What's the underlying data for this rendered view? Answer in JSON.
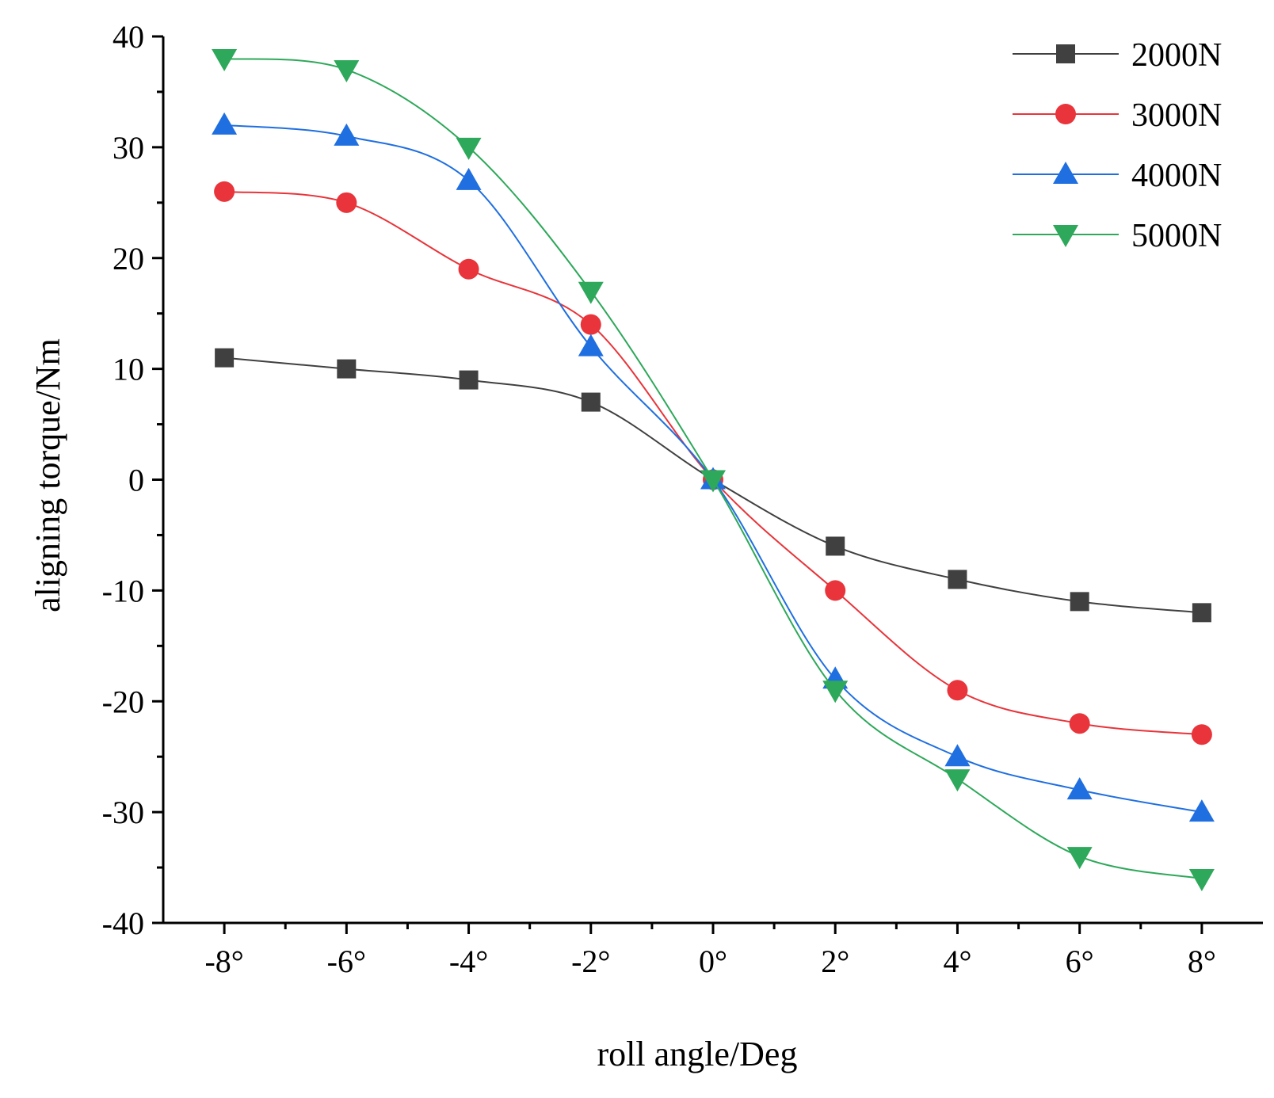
{
  "chart_data": {
    "type": "line",
    "title": "",
    "xlabel": "roll angle/Deg",
    "ylabel": "aligning torque/Nm",
    "x": [
      -8,
      -6,
      -4,
      -2,
      0,
      2,
      4,
      6,
      8
    ],
    "x_tick_labels": [
      "-8°",
      "-6°",
      "-4°",
      "-2°",
      "0°",
      "2°",
      "4°",
      "6°",
      "8°"
    ],
    "xlim": [
      -9,
      9
    ],
    "ylim": [
      -40,
      40
    ],
    "y_ticks": [
      -40,
      -30,
      -20,
      -10,
      0,
      10,
      20,
      30,
      40
    ],
    "y_tick_labels": [
      "-40",
      "-30",
      "-20",
      "-10",
      "0",
      "10",
      "20",
      "30",
      "40"
    ],
    "grid": false,
    "legend_position": "top-right",
    "series": [
      {
        "name": "2000N",
        "color": "#404040",
        "marker": "square",
        "values": [
          11,
          10,
          9,
          7,
          0,
          -6,
          -9,
          -11,
          -12
        ]
      },
      {
        "name": "3000N",
        "color": "#e8343a",
        "marker": "circle",
        "values": [
          26,
          25,
          19,
          14,
          0,
          -10,
          -19,
          -22,
          -23
        ]
      },
      {
        "name": "4000N",
        "color": "#1f6fe0",
        "marker": "triangle-up",
        "values": [
          32,
          31,
          27,
          12,
          0,
          -18,
          -25,
          -28,
          -30
        ]
      },
      {
        "name": "5000N",
        "color": "#2ea85a",
        "marker": "triangle-down",
        "values": [
          38,
          37,
          30,
          17,
          0,
          -19,
          -27,
          -34,
          -36
        ]
      }
    ]
  }
}
